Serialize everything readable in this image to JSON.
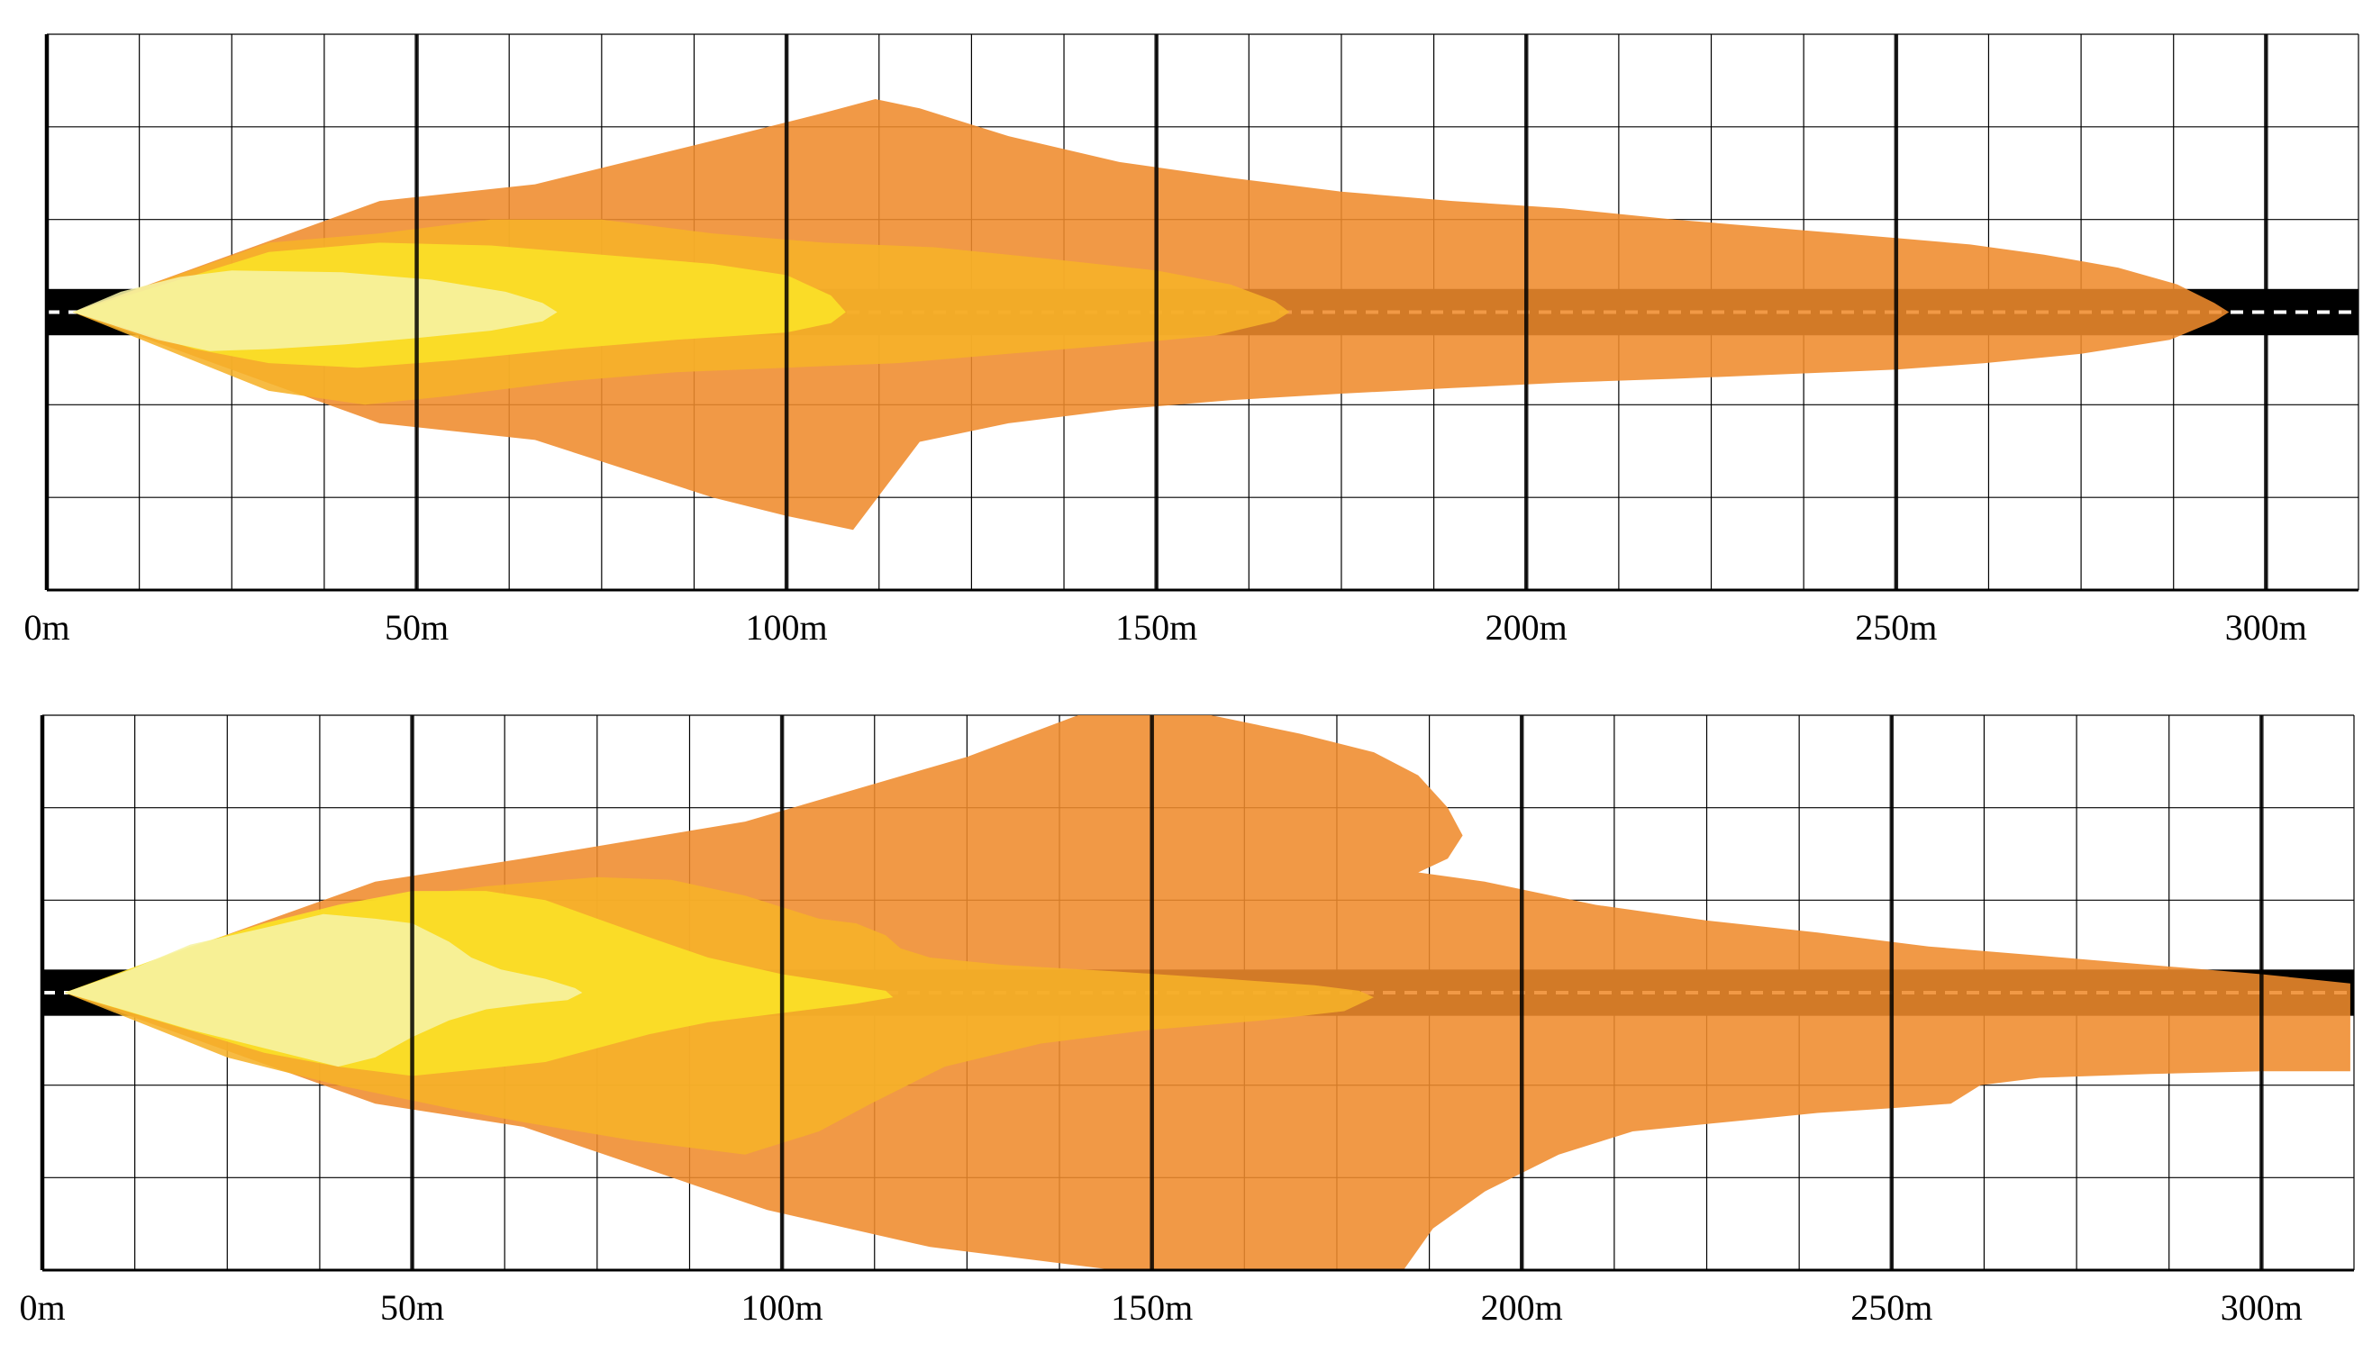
{
  "diagrams": [
    {
      "x_unit": "m",
      "x_range": [
        0,
        312.5
      ],
      "x_labels": [
        "0m",
        "50m",
        "100m",
        "150m",
        "200m",
        "250m",
        "300m"
      ],
      "y_range": [
        -3,
        3
      ],
      "road": {
        "half_width": 0.25,
        "lane_markings": "dashed",
        "color": "#000000",
        "marking_color": "#ffffff"
      },
      "zones": [
        {
          "color": "#ef8b2c",
          "points": [
            [
              3.5,
              0
            ],
            [
              45,
              1.2
            ],
            [
              66,
              1.38
            ],
            [
              90,
              1.85
            ],
            [
              105,
              2.15
            ],
            [
              112,
              2.3
            ],
            [
              118,
              2.2
            ],
            [
              130,
              1.9
            ],
            [
              145,
              1.62
            ],
            [
              160,
              1.45
            ],
            [
              175,
              1.3
            ],
            [
              190,
              1.2
            ],
            [
              205,
              1.12
            ],
            [
              220,
              1.0
            ],
            [
              235,
              0.9
            ],
            [
              250,
              0.8
            ],
            [
              260,
              0.73
            ],
            [
              270,
              0.62
            ],
            [
              280,
              0.48
            ],
            [
              288,
              0.3
            ],
            [
              293,
              0.1
            ],
            [
              295,
              0
            ],
            [
              293,
              -0.1
            ],
            [
              287,
              -0.3
            ],
            [
              275,
              -0.45
            ],
            [
              262,
              -0.55
            ],
            [
              250,
              -0.62
            ],
            [
              235,
              -0.67
            ],
            [
              220,
              -0.72
            ],
            [
              205,
              -0.76
            ],
            [
              190,
              -0.82
            ],
            [
              175,
              -0.88
            ],
            [
              160,
              -0.95
            ],
            [
              145,
              -1.05
            ],
            [
              130,
              -1.2
            ],
            [
              118,
              -1.4
            ],
            [
              109,
              -2.35
            ],
            [
              100,
              -2.2
            ],
            [
              90,
              -2.0
            ],
            [
              66,
              -1.38
            ],
            [
              45,
              -1.2
            ],
            [
              3.5,
              0
            ]
          ]
        },
        {
          "color": "#f6b229",
          "points": [
            [
              3.5,
              0
            ],
            [
              30,
              0.75
            ],
            [
              45,
              0.85
            ],
            [
              60,
              1.0
            ],
            [
              75,
              1.0
            ],
            [
              90,
              0.85
            ],
            [
              105,
              0.75
            ],
            [
              120,
              0.7
            ],
            [
              135,
              0.58
            ],
            [
              150,
              0.45
            ],
            [
              160,
              0.3
            ],
            [
              166,
              0.12
            ],
            [
              168,
              0
            ],
            [
              166,
              -0.1
            ],
            [
              158,
              -0.25
            ],
            [
              145,
              -0.35
            ],
            [
              130,
              -0.45
            ],
            [
              115,
              -0.55
            ],
            [
              100,
              -0.6
            ],
            [
              85,
              -0.65
            ],
            [
              70,
              -0.75
            ],
            [
              55,
              -0.9
            ],
            [
              43,
              -1.0
            ],
            [
              30,
              -0.85
            ],
            [
              3.5,
              0
            ]
          ]
        },
        {
          "color": "#fbe327",
          "points": [
            [
              3.5,
              0
            ],
            [
              20,
              0.4
            ],
            [
              30,
              0.65
            ],
            [
              45,
              0.75
            ],
            [
              60,
              0.72
            ],
            [
              75,
              0.62
            ],
            [
              90,
              0.52
            ],
            [
              100,
              0.4
            ],
            [
              106,
              0.18
            ],
            [
              108,
              0
            ],
            [
              106,
              -0.12
            ],
            [
              100,
              -0.22
            ],
            [
              85,
              -0.3
            ],
            [
              70,
              -0.4
            ],
            [
              55,
              -0.52
            ],
            [
              42,
              -0.6
            ],
            [
              30,
              -0.55
            ],
            [
              20,
              -0.4
            ],
            [
              3.5,
              0
            ]
          ]
        },
        {
          "color": "#f6f3a5",
          "points": [
            [
              3.5,
              0
            ],
            [
              10,
              0.22
            ],
            [
              18,
              0.38
            ],
            [
              25,
              0.45
            ],
            [
              40,
              0.43
            ],
            [
              52,
              0.35
            ],
            [
              62,
              0.22
            ],
            [
              67,
              0.1
            ],
            [
              69,
              0
            ],
            [
              67,
              -0.1
            ],
            [
              60,
              -0.2
            ],
            [
              50,
              -0.28
            ],
            [
              40,
              -0.35
            ],
            [
              30,
              -0.4
            ],
            [
              22,
              -0.42
            ],
            [
              15,
              -0.3
            ],
            [
              3.5,
              0
            ]
          ]
        }
      ]
    },
    {
      "x_unit": "m",
      "x_range": [
        0,
        312.5
      ],
      "x_labels": [
        "0m",
        "50m",
        "100m",
        "150m",
        "200m",
        "250m",
        "300m"
      ],
      "y_range": [
        -3,
        3
      ],
      "road": {
        "half_width": 0.25,
        "lane_markings": "dashed",
        "color": "#000000",
        "marking_color": "#ffffff"
      },
      "zones": [
        {
          "color": "#ef8b2c",
          "points": [
            [
              3,
              0
            ],
            [
              45,
              1.2
            ],
            [
              65,
              1.45
            ],
            [
              95,
              1.85
            ],
            [
              110,
              2.2
            ],
            [
              125,
              2.55
            ],
            [
              140,
              3.0
            ],
            [
              158,
              3.0
            ],
            [
              170,
              2.8
            ],
            [
              180,
              2.6
            ],
            [
              186,
              2.35
            ],
            [
              190,
              2.0
            ],
            [
              192,
              1.7
            ],
            [
              190,
              1.45
            ],
            [
              186,
              1.3
            ],
            [
              195,
              1.2
            ],
            [
              210,
              0.95
            ],
            [
              225,
              0.78
            ],
            [
              240,
              0.65
            ],
            [
              255,
              0.5
            ],
            [
              270,
              0.4
            ],
            [
              285,
              0.3
            ],
            [
              300,
              0.2
            ],
            [
              312,
              0.1
            ],
            [
              312,
              -0.85
            ],
            [
              300,
              -0.85
            ],
            [
              285,
              -0.88
            ],
            [
              270,
              -0.92
            ],
            [
              262,
              -1.0
            ],
            [
              258,
              -1.2
            ],
            [
              250,
              -1.25
            ],
            [
              240,
              -1.3
            ],
            [
              230,
              -1.38
            ],
            [
              215,
              -1.5
            ],
            [
              205,
              -1.75
            ],
            [
              195,
              -2.15
            ],
            [
              188,
              -2.55
            ],
            [
              184,
              -3.0
            ],
            [
              145,
              -3.0
            ],
            [
              120,
              -2.75
            ],
            [
              98,
              -2.35
            ],
            [
              65,
              -1.45
            ],
            [
              45,
              -1.2
            ],
            [
              3,
              0
            ]
          ]
        },
        {
          "color": "#f6b229",
          "points": [
            [
              3,
              0
            ],
            [
              30,
              0.75
            ],
            [
              45,
              1.0
            ],
            [
              60,
              1.15
            ],
            [
              75,
              1.25
            ],
            [
              85,
              1.22
            ],
            [
              95,
              1.05
            ],
            [
              105,
              0.8
            ],
            [
              110,
              0.75
            ],
            [
              114,
              0.62
            ],
            [
              116,
              0.48
            ],
            [
              120,
              0.38
            ],
            [
              130,
              0.3
            ],
            [
              145,
              0.23
            ],
            [
              160,
              0.15
            ],
            [
              172,
              0.08
            ],
            [
              178,
              0.02
            ],
            [
              180,
              -0.05
            ],
            [
              176,
              -0.2
            ],
            [
              165,
              -0.3
            ],
            [
              150,
              -0.4
            ],
            [
              135,
              -0.55
            ],
            [
              122,
              -0.8
            ],
            [
              112,
              -1.2
            ],
            [
              105,
              -1.5
            ],
            [
              95,
              -1.75
            ],
            [
              80,
              -1.6
            ],
            [
              65,
              -1.4
            ],
            [
              55,
              -1.25
            ],
            [
              40,
              -1.0
            ],
            [
              25,
              -0.7
            ],
            [
              3,
              0
            ]
          ]
        },
        {
          "color": "#fbe327",
          "points": [
            [
              3,
              0
            ],
            [
              20,
              0.5
            ],
            [
              30,
              0.75
            ],
            [
              40,
              0.95
            ],
            [
              50,
              1.1
            ],
            [
              60,
              1.1
            ],
            [
              68,
              1.0
            ],
            [
              75,
              0.8
            ],
            [
              82,
              0.6
            ],
            [
              90,
              0.38
            ],
            [
              100,
              0.2
            ],
            [
              108,
              0.1
            ],
            [
              114,
              0.02
            ],
            [
              115,
              -0.05
            ],
            [
              110,
              -0.12
            ],
            [
              100,
              -0.22
            ],
            [
              90,
              -0.32
            ],
            [
              82,
              -0.45
            ],
            [
              75,
              -0.6
            ],
            [
              68,
              -0.75
            ],
            [
              60,
              -0.82
            ],
            [
              50,
              -0.9
            ],
            [
              40,
              -0.8
            ],
            [
              30,
              -0.65
            ],
            [
              3,
              0
            ]
          ]
        },
        {
          "color": "#f6f3a5",
          "points": [
            [
              3,
              0
            ],
            [
              12,
              0.25
            ],
            [
              20,
              0.52
            ],
            [
              30,
              0.7
            ],
            [
              38,
              0.85
            ],
            [
              45,
              0.8
            ],
            [
              50,
              0.75
            ],
            [
              55,
              0.55
            ],
            [
              58,
              0.38
            ],
            [
              62,
              0.25
            ],
            [
              68,
              0.15
            ],
            [
              72,
              0.05
            ],
            [
              73,
              0
            ],
            [
              71,
              -0.08
            ],
            [
              66,
              -0.12
            ],
            [
              60,
              -0.18
            ],
            [
              55,
              -0.3
            ],
            [
              50,
              -0.48
            ],
            [
              45,
              -0.7
            ],
            [
              40,
              -0.8
            ],
            [
              30,
              -0.6
            ],
            [
              20,
              -0.4
            ],
            [
              3,
              0
            ]
          ]
        }
      ]
    }
  ]
}
